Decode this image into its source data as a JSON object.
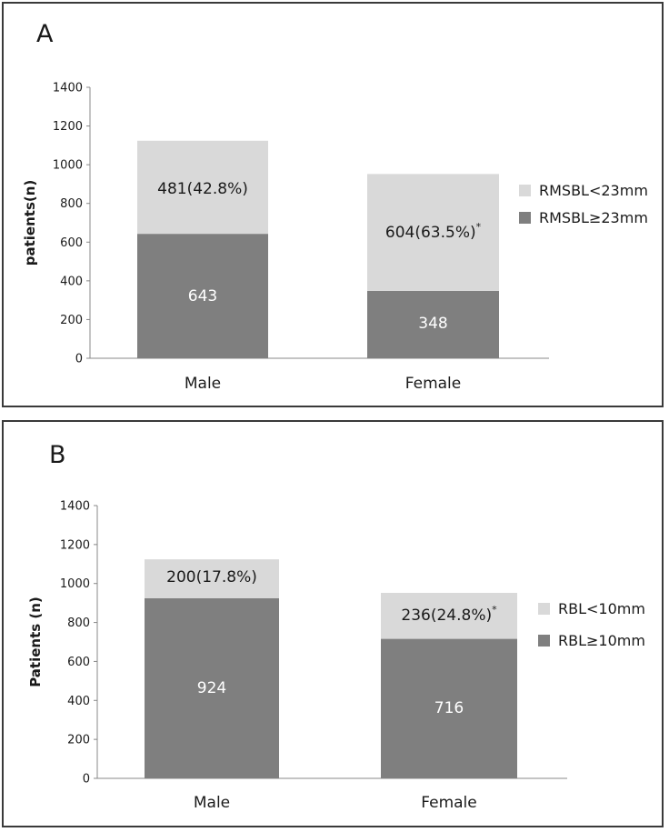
{
  "colors": {
    "light": "#d9d9d9",
    "dark": "#7f7f7f",
    "axis": "#888888"
  },
  "chart_data": [
    {
      "type": "bar",
      "stacked": true,
      "panel_label": "A",
      "ylabel": "patients(n)",
      "ylim": [
        0,
        1400
      ],
      "yticks": [
        "0",
        "200",
        "400",
        "600",
        "800",
        "1000",
        "1200",
        "1400"
      ],
      "categories": [
        "Male",
        "Female"
      ],
      "series": [
        {
          "name": "RMSBL≥23mm",
          "values": [
            643,
            348
          ],
          "labels": [
            "643",
            "348"
          ],
          "color": "#7f7f7f"
        },
        {
          "name": "RMSBL<23mm",
          "values": [
            481,
            604
          ],
          "labels": [
            "481(42.8%)",
            "604(63.5%)"
          ],
          "marks": [
            "",
            "*"
          ],
          "color": "#d9d9d9"
        }
      ],
      "legend": "right"
    },
    {
      "type": "bar",
      "stacked": true,
      "panel_label": "B",
      "ylabel": "Patients (n)",
      "ylim": [
        0,
        1400
      ],
      "yticks": [
        "0",
        "200",
        "400",
        "600",
        "800",
        "1000",
        "1200",
        "1400"
      ],
      "categories": [
        "Male",
        "Female"
      ],
      "series": [
        {
          "name": "RBL≥10mm",
          "values": [
            924,
            716
          ],
          "labels": [
            "924",
            "716"
          ],
          "color": "#7f7f7f"
        },
        {
          "name": "RBL<10mm",
          "values": [
            200,
            236
          ],
          "labels": [
            "200(17.8%)",
            "236(24.8%)"
          ],
          "marks": [
            "",
            "*"
          ],
          "color": "#d9d9d9"
        }
      ],
      "legend": "right"
    }
  ]
}
